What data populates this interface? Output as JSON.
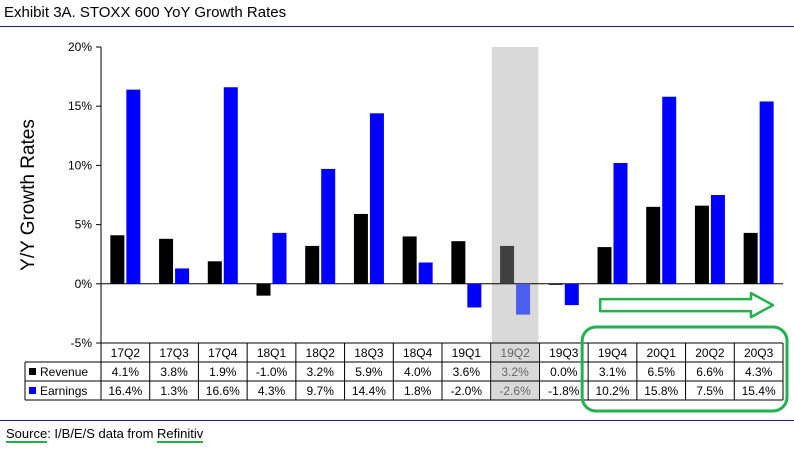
{
  "title": "Exhibit 3A.  STOXX 600 YoY Growth Rates",
  "source": {
    "label": "Source",
    "text": ": I/B/E/S data from ",
    "provider": "Refinitiv"
  },
  "colors": {
    "revenue": "#000000",
    "earnings": "#0000ff",
    "highlight_band": "#d9d9d9",
    "highlight_revenue": "#404040",
    "highlight_earnings": "#4b5ef0",
    "annotation": "#22b14c"
  },
  "chart_data": {
    "type": "bar",
    "ylabel": "Y/Y Growth Rates",
    "ylim": [
      -5,
      20
    ],
    "yticks": [
      "-5%",
      "0%",
      "5%",
      "10%",
      "15%",
      "20%"
    ],
    "grid": false,
    "legend": "table-rows",
    "categories": [
      "17Q2",
      "17Q3",
      "17Q4",
      "18Q1",
      "18Q2",
      "18Q3",
      "18Q4",
      "19Q1",
      "19Q2",
      "19Q3",
      "19Q4",
      "20Q1",
      "20Q2",
      "20Q3"
    ],
    "highlighted_category": "19Q2",
    "series": [
      {
        "name": "Revenue",
        "key": "revenue",
        "values": [
          4.1,
          3.8,
          1.9,
          -1.0,
          3.2,
          5.9,
          4.0,
          3.6,
          3.2,
          0.0,
          3.1,
          6.5,
          6.6,
          4.3
        ],
        "labels": [
          "4.1%",
          "3.8%",
          "1.9%",
          "-1.0%",
          "3.2%",
          "5.9%",
          "4.0%",
          "3.6%",
          "3.2%",
          "0.0%",
          "3.1%",
          "6.5%",
          "6.6%",
          "4.3%"
        ]
      },
      {
        "name": "Earnings",
        "key": "earnings",
        "values": [
          16.4,
          1.3,
          16.6,
          4.3,
          9.7,
          14.4,
          1.8,
          -2.0,
          -2.6,
          -1.8,
          10.2,
          15.8,
          7.5,
          15.4
        ],
        "labels": [
          "16.4%",
          "1.3%",
          "16.6%",
          "4.3%",
          "9.7%",
          "14.4%",
          "1.8%",
          "-2.0%",
          "-2.6%",
          "-1.8%",
          "10.2%",
          "15.8%",
          "7.5%",
          "15.4%"
        ]
      }
    ],
    "annotations": [
      {
        "type": "arrow",
        "direction": "right",
        "from_category": "19Q4",
        "to_category": "20Q3"
      },
      {
        "type": "rounded-box",
        "from_category": "19Q4",
        "to_category": "20Q3",
        "rows": "categories+table"
      }
    ]
  }
}
